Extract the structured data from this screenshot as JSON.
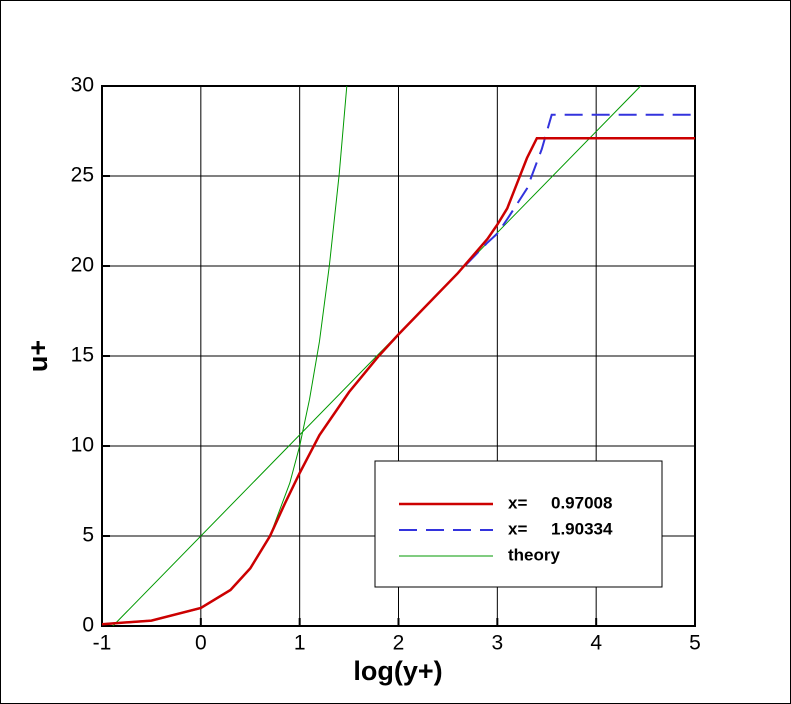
{
  "chart_data": {
    "type": "line",
    "xlabel": "log(y+)",
    "ylabel": "u+",
    "xlim": [
      -1,
      5
    ],
    "ylim": [
      0,
      30
    ],
    "xticks": [
      -1,
      0,
      1,
      2,
      3,
      4,
      5
    ],
    "yticks": [
      0,
      5,
      10,
      15,
      20,
      25,
      30
    ],
    "grid": true,
    "legend": "lower right",
    "series": [
      {
        "name": "x=     0.97008",
        "color": "#cc0000",
        "dash": "solid",
        "width": 2.5,
        "x": [
          -1,
          -0.5,
          0,
          0.3,
          0.5,
          0.7,
          0.85,
          1.0,
          1.2,
          1.5,
          1.8,
          2.0,
          2.3,
          2.6,
          2.9,
          3.0,
          3.1,
          3.2,
          3.3,
          3.4,
          3.45,
          5
        ],
        "values": [
          0.1,
          0.3,
          1.0,
          2.0,
          3.2,
          5.0,
          6.8,
          8.5,
          10.6,
          13,
          15,
          16.2,
          17.9,
          19.6,
          21.5,
          22.3,
          23.2,
          24.6,
          26.0,
          27.1,
          27.1,
          27.1
        ]
      },
      {
        "name": "x=     1.90334",
        "color": "#3333dd",
        "dash": "dashed",
        "width": 2,
        "x": [
          -1,
          -0.5,
          0,
          0.3,
          0.5,
          0.7,
          0.85,
          1.0,
          1.2,
          1.5,
          1.8,
          2.0,
          2.3,
          2.6,
          2.9,
          3.0,
          3.1,
          3.3,
          3.45,
          3.55,
          5
        ],
        "values": [
          0.1,
          0.3,
          1.0,
          2.0,
          3.2,
          5.0,
          6.8,
          8.5,
          10.6,
          13,
          15,
          16.2,
          17.9,
          19.6,
          21.3,
          21.8,
          22.6,
          24.3,
          26.5,
          28.4,
          28.4
        ]
      },
      {
        "name": "theory",
        "color": "#009900",
        "dash": "solid",
        "width": 1,
        "x": [
          -1,
          -0.5,
          0,
          0.3,
          0.5,
          0.7,
          0.9,
          1.0,
          1.1,
          1.2,
          1.3,
          1.4,
          1.477,
          null,
          -0.89,
          4.45
        ],
        "values": [
          0.1,
          0.32,
          1,
          2,
          3.16,
          5.01,
          7.94,
          10,
          12.6,
          15.8,
          20,
          25.1,
          30,
          null,
          0,
          30
        ]
      }
    ]
  }
}
